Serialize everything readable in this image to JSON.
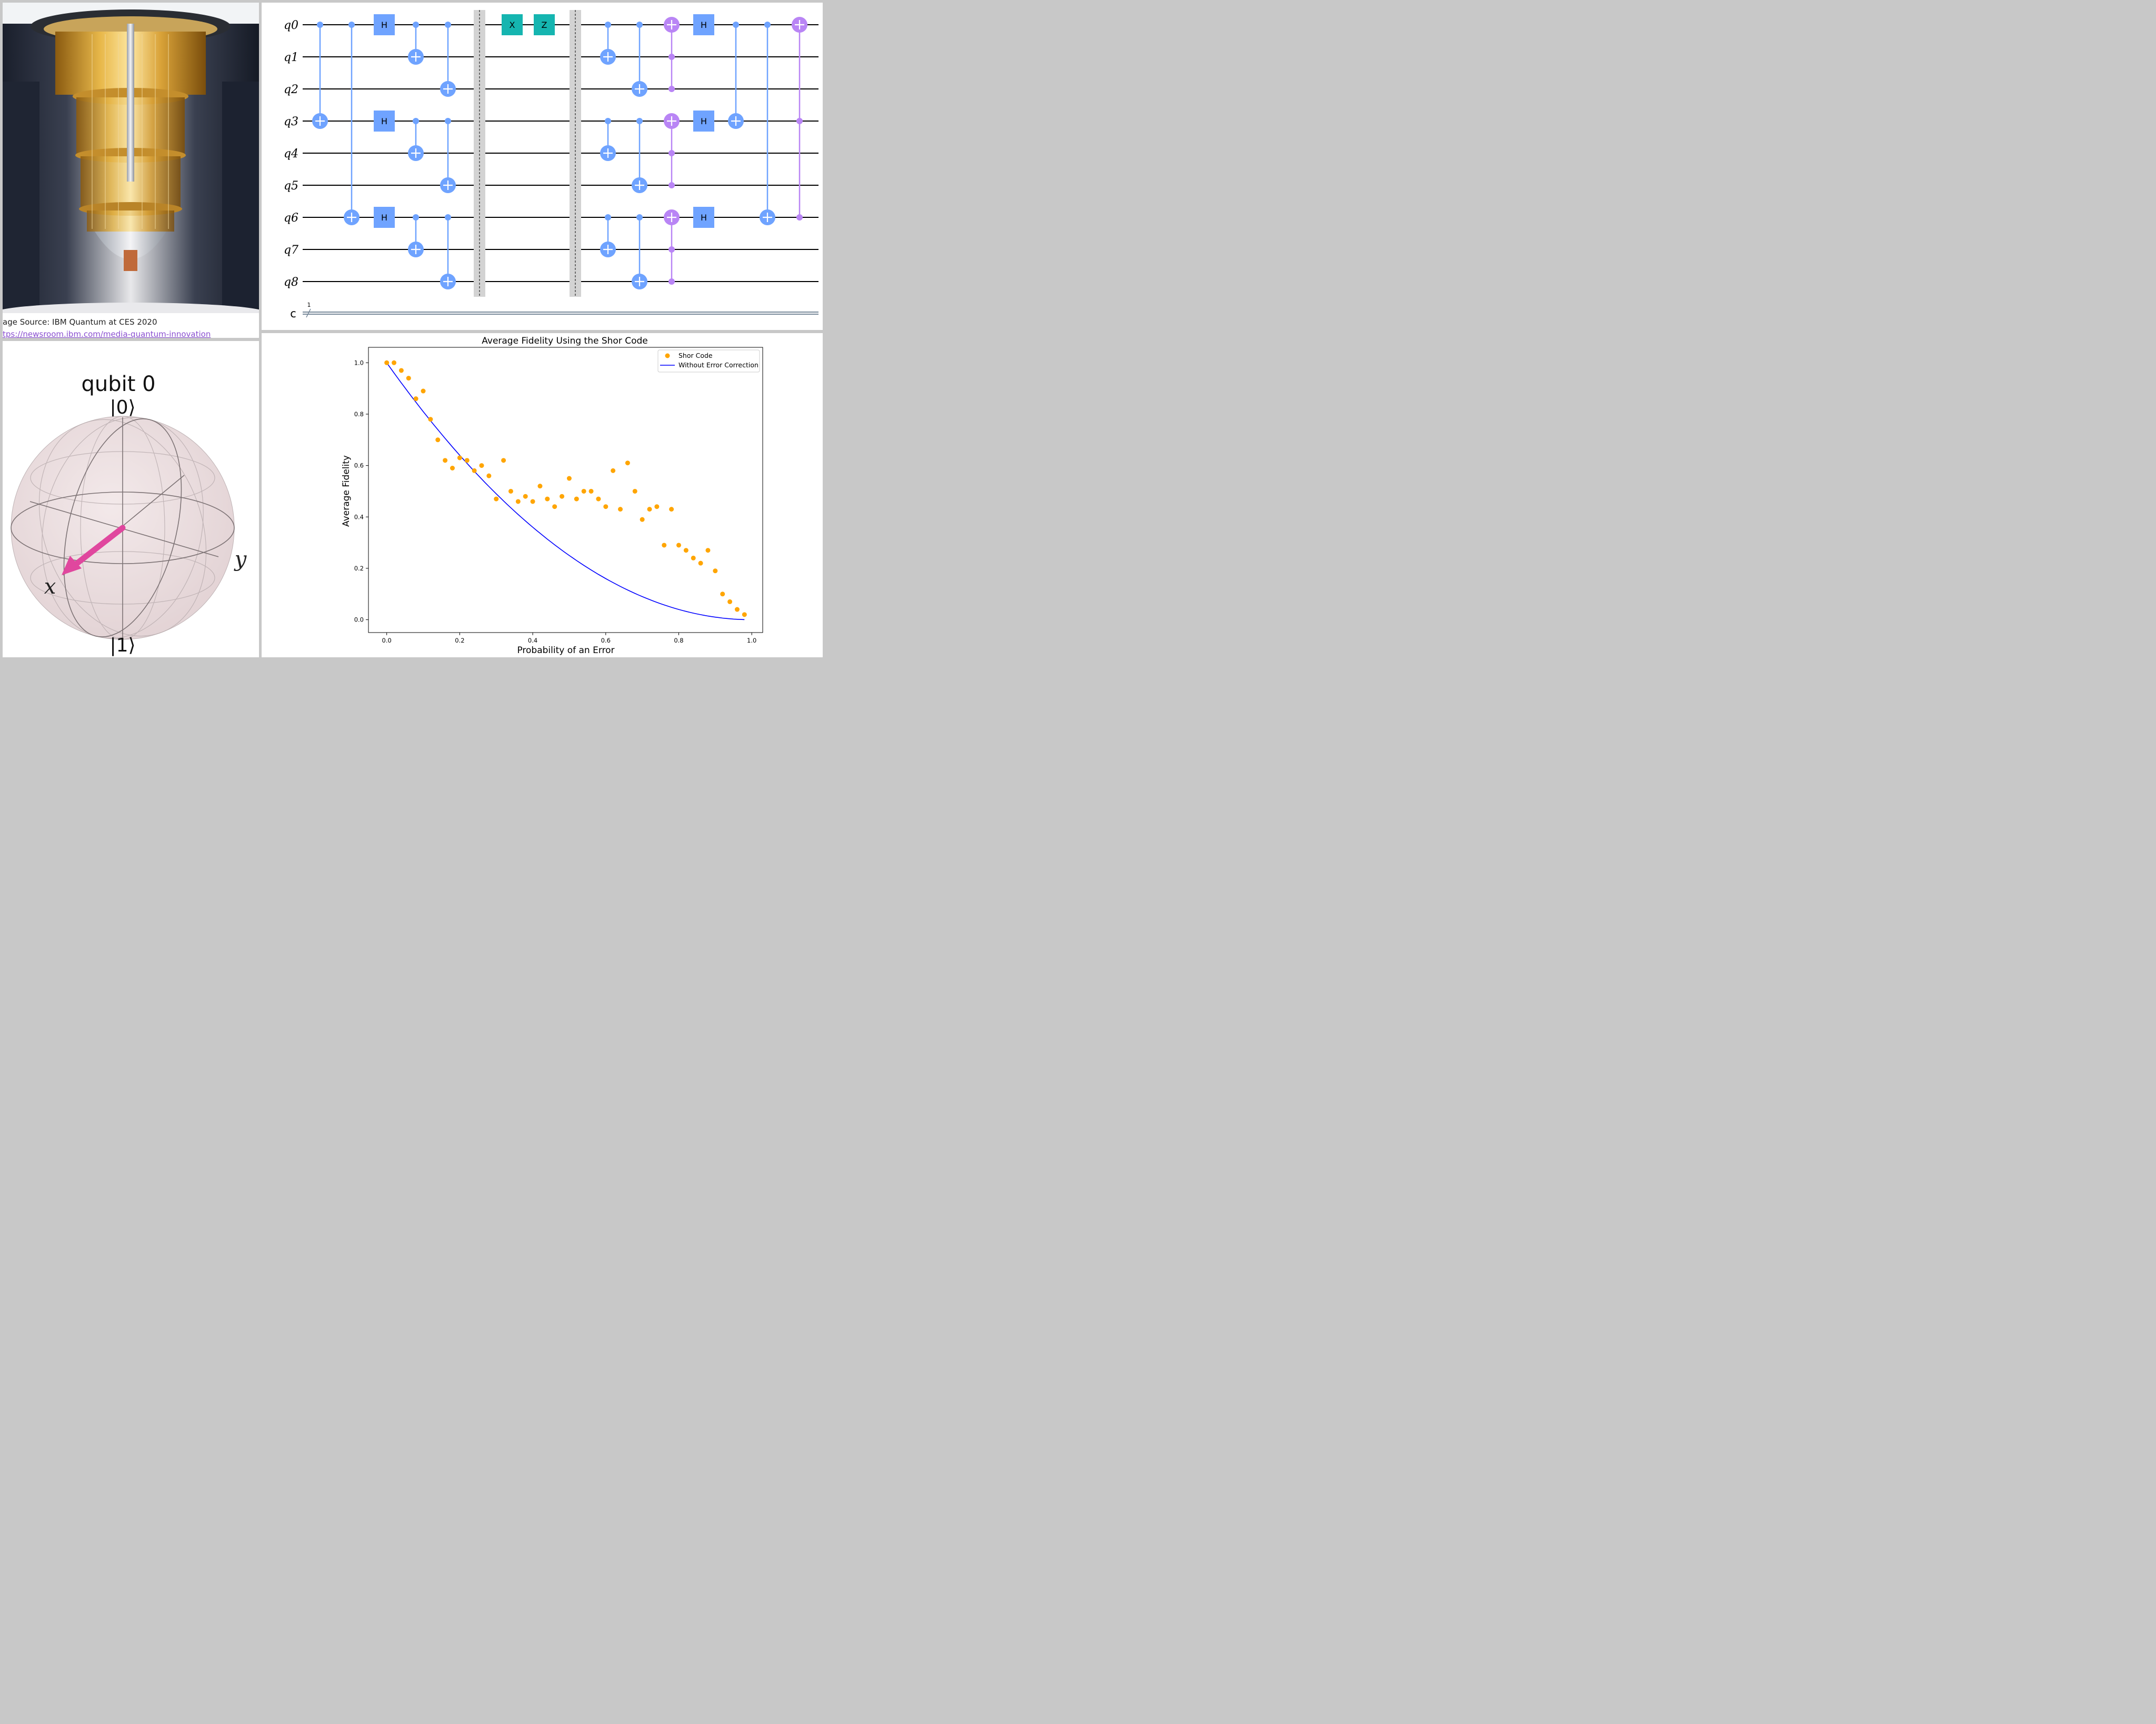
{
  "photo": {
    "caption_source": "age Source: IBM Quantum at CES 2020",
    "caption_link": "tps://newsroom.ibm.com/media-quantum-innovation"
  },
  "circuit": {
    "qubit_labels": [
      "q0",
      "q1",
      "q2",
      "q3",
      "q4",
      "q5",
      "q6",
      "q7",
      "q8"
    ],
    "classical_label": "c",
    "classical_bits": "1",
    "gate_labels": {
      "h": "H",
      "x": "X",
      "z": "Z"
    },
    "colors": {
      "cx": "#6fa3ff",
      "h": "#6fa3ff",
      "error": "#15b5b0",
      "toffoli": "#b985f5",
      "barrier": "#d3d3d3"
    }
  },
  "bloch": {
    "title": "qubit 0",
    "ket0": "|0⟩",
    "ket1": "|1⟩",
    "x_label": "x",
    "y_label": "y",
    "vector_color": "#e0479e"
  },
  "chart_data": {
    "type": "scatter",
    "title": "Average Fidelity Using the Shor Code",
    "xlabel": "Probability of an Error",
    "ylabel": "Average Fidelity",
    "xlim": [
      -0.05,
      1.03
    ],
    "ylim": [
      -0.05,
      1.06
    ],
    "xticks": [
      "0.0",
      "0.2",
      "0.4",
      "0.6",
      "0.8",
      "1.0"
    ],
    "yticks": [
      "0.0",
      "0.2",
      "0.4",
      "0.6",
      "0.8",
      "1.0"
    ],
    "legend_position": "top-right",
    "grid": false,
    "series": [
      {
        "name": "Shor Code",
        "kind": "scatter",
        "color": "#ffa500",
        "x": [
          0.0,
          0.02,
          0.04,
          0.06,
          0.08,
          0.1,
          0.12,
          0.14,
          0.16,
          0.18,
          0.2,
          0.22,
          0.24,
          0.26,
          0.28,
          0.3,
          0.32,
          0.34,
          0.36,
          0.38,
          0.4,
          0.42,
          0.44,
          0.46,
          0.48,
          0.5,
          0.52,
          0.54,
          0.56,
          0.58,
          0.6,
          0.62,
          0.64,
          0.66,
          0.68,
          0.7,
          0.72,
          0.74,
          0.76,
          0.78,
          0.8,
          0.82,
          0.84,
          0.86,
          0.88,
          0.9,
          0.92,
          0.94,
          0.96,
          0.98
        ],
        "y": [
          1.0,
          1.0,
          0.97,
          0.94,
          0.86,
          0.89,
          0.78,
          0.7,
          0.62,
          0.59,
          0.63,
          0.62,
          0.58,
          0.6,
          0.56,
          0.47,
          0.62,
          0.5,
          0.46,
          0.48,
          0.46,
          0.52,
          0.47,
          0.44,
          0.48,
          0.55,
          0.47,
          0.5,
          0.5,
          0.47,
          0.44,
          0.58,
          0.43,
          0.61,
          0.5,
          0.39,
          0.43,
          0.44,
          0.29,
          0.43,
          0.29,
          0.27,
          0.24,
          0.22,
          0.27,
          0.19,
          0.1,
          0.07,
          0.04,
          0.02
        ]
      },
      {
        "name": "Without Error Correction",
        "kind": "line",
        "color": "#0000ff",
        "x": [
          0.0,
          0.05,
          0.1,
          0.15,
          0.2,
          0.25,
          0.3,
          0.35,
          0.4,
          0.45,
          0.5,
          0.55,
          0.6,
          0.65,
          0.7,
          0.75,
          0.8,
          0.85,
          0.9,
          0.95,
          0.98
        ],
        "y": [
          1.0,
          0.9025,
          0.81,
          0.7225,
          0.64,
          0.5625,
          0.49,
          0.4225,
          0.36,
          0.3025,
          0.25,
          0.2025,
          0.16,
          0.1225,
          0.09,
          0.0625,
          0.04,
          0.0225,
          0.01,
          0.0025,
          0.0004
        ]
      }
    ]
  }
}
